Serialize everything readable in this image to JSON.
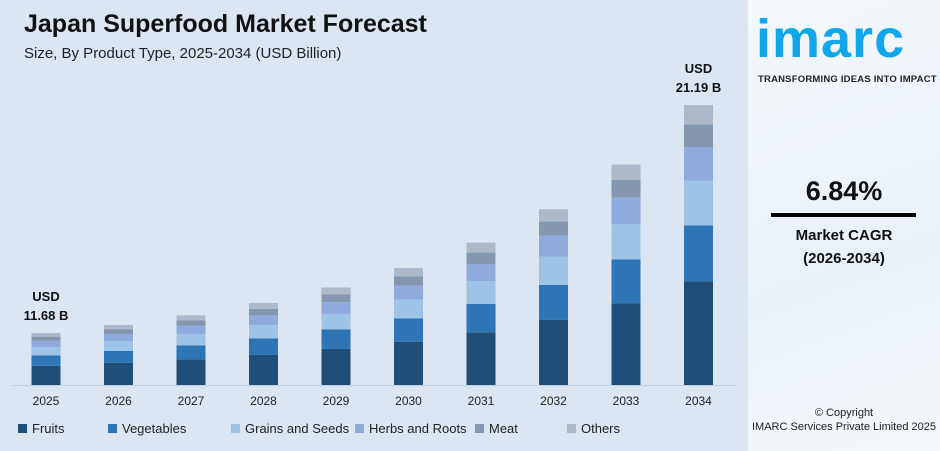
{
  "chart_data": {
    "type": "bar",
    "stacked": true,
    "title": "Japan Superfood Market Forecast",
    "subtitle": "Size, By Product Type, 2025-2034 (USD Billion)",
    "categories": [
      "2025",
      "2026",
      "2027",
      "2028",
      "2029",
      "2030",
      "2031",
      "2032",
      "2033",
      "2034"
    ],
    "series": [
      {
        "name": "Fruits",
        "color": "#1f4e79",
        "values": [
          4.32,
          4.62,
          4.93,
          5.27,
          5.63,
          6.02,
          6.43,
          6.87,
          7.34,
          7.84
        ]
      },
      {
        "name": "Vegetables",
        "color": "#2e75b6",
        "values": [
          2.34,
          2.5,
          2.67,
          2.85,
          3.04,
          3.25,
          3.47,
          3.71,
          3.97,
          4.24
        ]
      },
      {
        "name": "Grains and Seeds",
        "color": "#9dc3e6",
        "values": [
          1.87,
          2.0,
          2.13,
          2.28,
          2.44,
          2.6,
          2.78,
          2.97,
          3.17,
          3.39
        ]
      },
      {
        "name": "Herbs and Roots",
        "color": "#8faadc",
        "values": [
          1.4,
          1.5,
          1.6,
          1.71,
          1.83,
          1.95,
          2.08,
          2.23,
          2.38,
          2.54
        ]
      },
      {
        "name": "Meat",
        "color": "#8497b0",
        "values": [
          0.93,
          1.0,
          1.07,
          1.14,
          1.22,
          1.3,
          1.39,
          1.48,
          1.59,
          1.7
        ]
      },
      {
        "name": "Others",
        "color": "#adb9ca",
        "values": [
          0.82,
          0.87,
          0.93,
          1.0,
          1.07,
          1.14,
          1.22,
          1.3,
          1.39,
          1.48
        ]
      }
    ],
    "annotations": [
      {
        "category": "2025",
        "line1": "USD",
        "line2": "11.68 B"
      },
      {
        "category": "2034",
        "line1": "USD",
        "line2": "21.19 B"
      }
    ],
    "grid": false,
    "legend": "bottom"
  },
  "brand": {
    "logo": "imarc",
    "tagline": "TRANSFORMING IDEAS INTO IMPACT",
    "color": "#12a6ec"
  },
  "cagr": {
    "value": "6.84%",
    "label": "Market CAGR",
    "period": "(2026-2034)"
  },
  "copyright": {
    "line1": "© Copyright",
    "line2": "IMARC Services Private Limited 2025"
  }
}
